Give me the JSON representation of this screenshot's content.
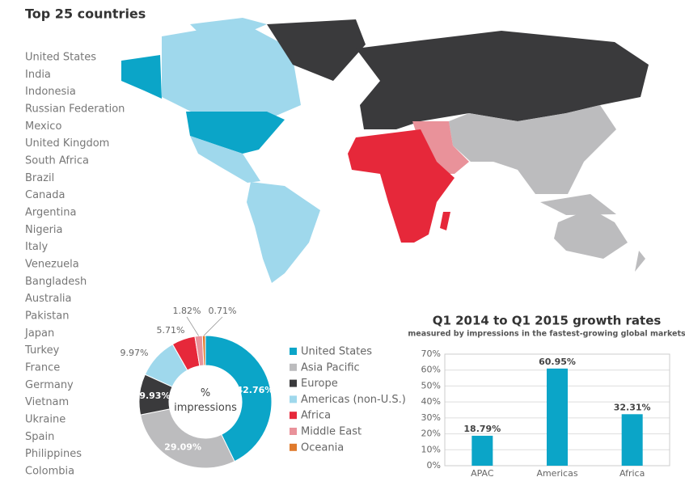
{
  "title": "Top 25 countries",
  "countries": [
    "United States",
    "India",
    "Indonesia",
    "Russian Federation",
    "Mexico",
    "United Kingdom",
    "South Africa",
    "Brazil",
    "Canada",
    "Argentina",
    "Nigeria",
    "Italy",
    "Venezuela",
    "Bangladesh",
    "Australia",
    "Pakistan",
    "Japan",
    "Turkey",
    "France",
    "Germany",
    "Vietnam",
    "Ukraine",
    "Spain",
    "Philippines",
    "Colombia"
  ],
  "chart_data": [
    {
      "type": "donut",
      "center_label": "% impressions",
      "categories": [
        "United States",
        "Asia Pacific",
        "Europe",
        "Americas (non-U.S.)",
        "Africa",
        "Middle East",
        "Oceania"
      ],
      "values": [
        42.76,
        29.09,
        9.93,
        9.97,
        5.71,
        1.82,
        0.71
      ],
      "value_labels": [
        "42.76%",
        "29.09%",
        "9.93%",
        "9.97%",
        "5.71%",
        "1.82%",
        "0.71%"
      ],
      "colors": [
        "#0ba5c8",
        "#bcbcbe",
        "#3a3a3c",
        "#9fd8ec",
        "#e6283a",
        "#e9929a",
        "#e07a2c"
      ]
    },
    {
      "type": "bar",
      "title": "Q1 2014 to Q1 2015 growth rates",
      "subtitle": "measured by impressions in the fastest-growing global markets",
      "categories": [
        "APAC",
        "Americas",
        "Africa"
      ],
      "values": [
        18.79,
        60.95,
        32.31
      ],
      "value_labels": [
        "18.79%",
        "60.95%",
        "32.31%"
      ],
      "color": "#0ba5c8",
      "ylim": [
        0,
        70
      ],
      "yticks": [
        {
          "value": 0,
          "label": "0%"
        },
        {
          "value": 10,
          "label": "10%"
        },
        {
          "value": 20,
          "label": "20%"
        },
        {
          "value": 30,
          "label": "30%"
        },
        {
          "value": 40,
          "label": "40%"
        },
        {
          "value": 50,
          "label": "50%"
        },
        {
          "value": 60,
          "label": "60%"
        },
        {
          "value": 70,
          "label": "70%"
        }
      ],
      "grid": true
    }
  ]
}
